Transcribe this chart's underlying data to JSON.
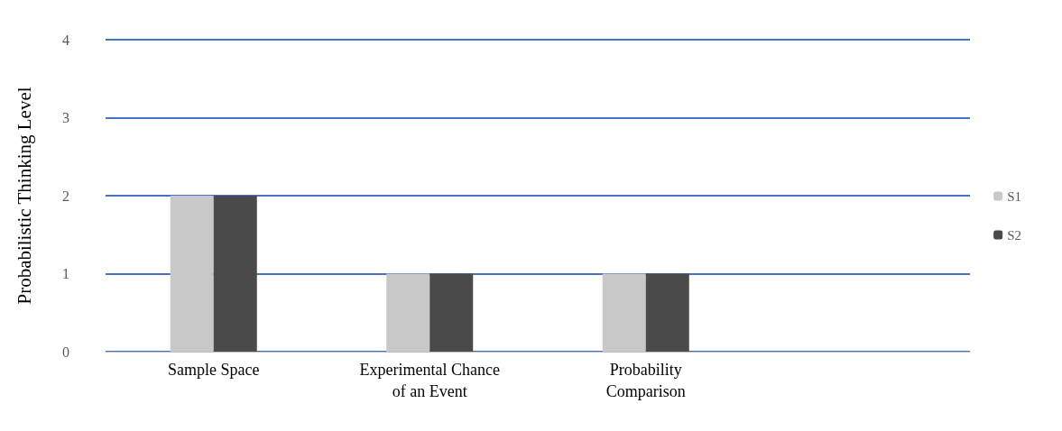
{
  "chart_data": {
    "type": "bar",
    "ylabel": "Probabilistic Thinking Level",
    "categories": [
      "Sample Space",
      "Experimental Chance\nof an Event",
      "Probability\nComparison",
      null
    ],
    "series": [
      {
        "name": "S1",
        "color": "#c8c8c8",
        "values": [
          2,
          1,
          1,
          null
        ]
      },
      {
        "name": "S2",
        "color": "#4a4a4a",
        "values": [
          2,
          1,
          1,
          null
        ]
      }
    ],
    "ylim": [
      0,
      4
    ],
    "yticks": [
      0,
      1,
      2,
      3,
      4
    ],
    "grid": "y",
    "legend": "right"
  }
}
